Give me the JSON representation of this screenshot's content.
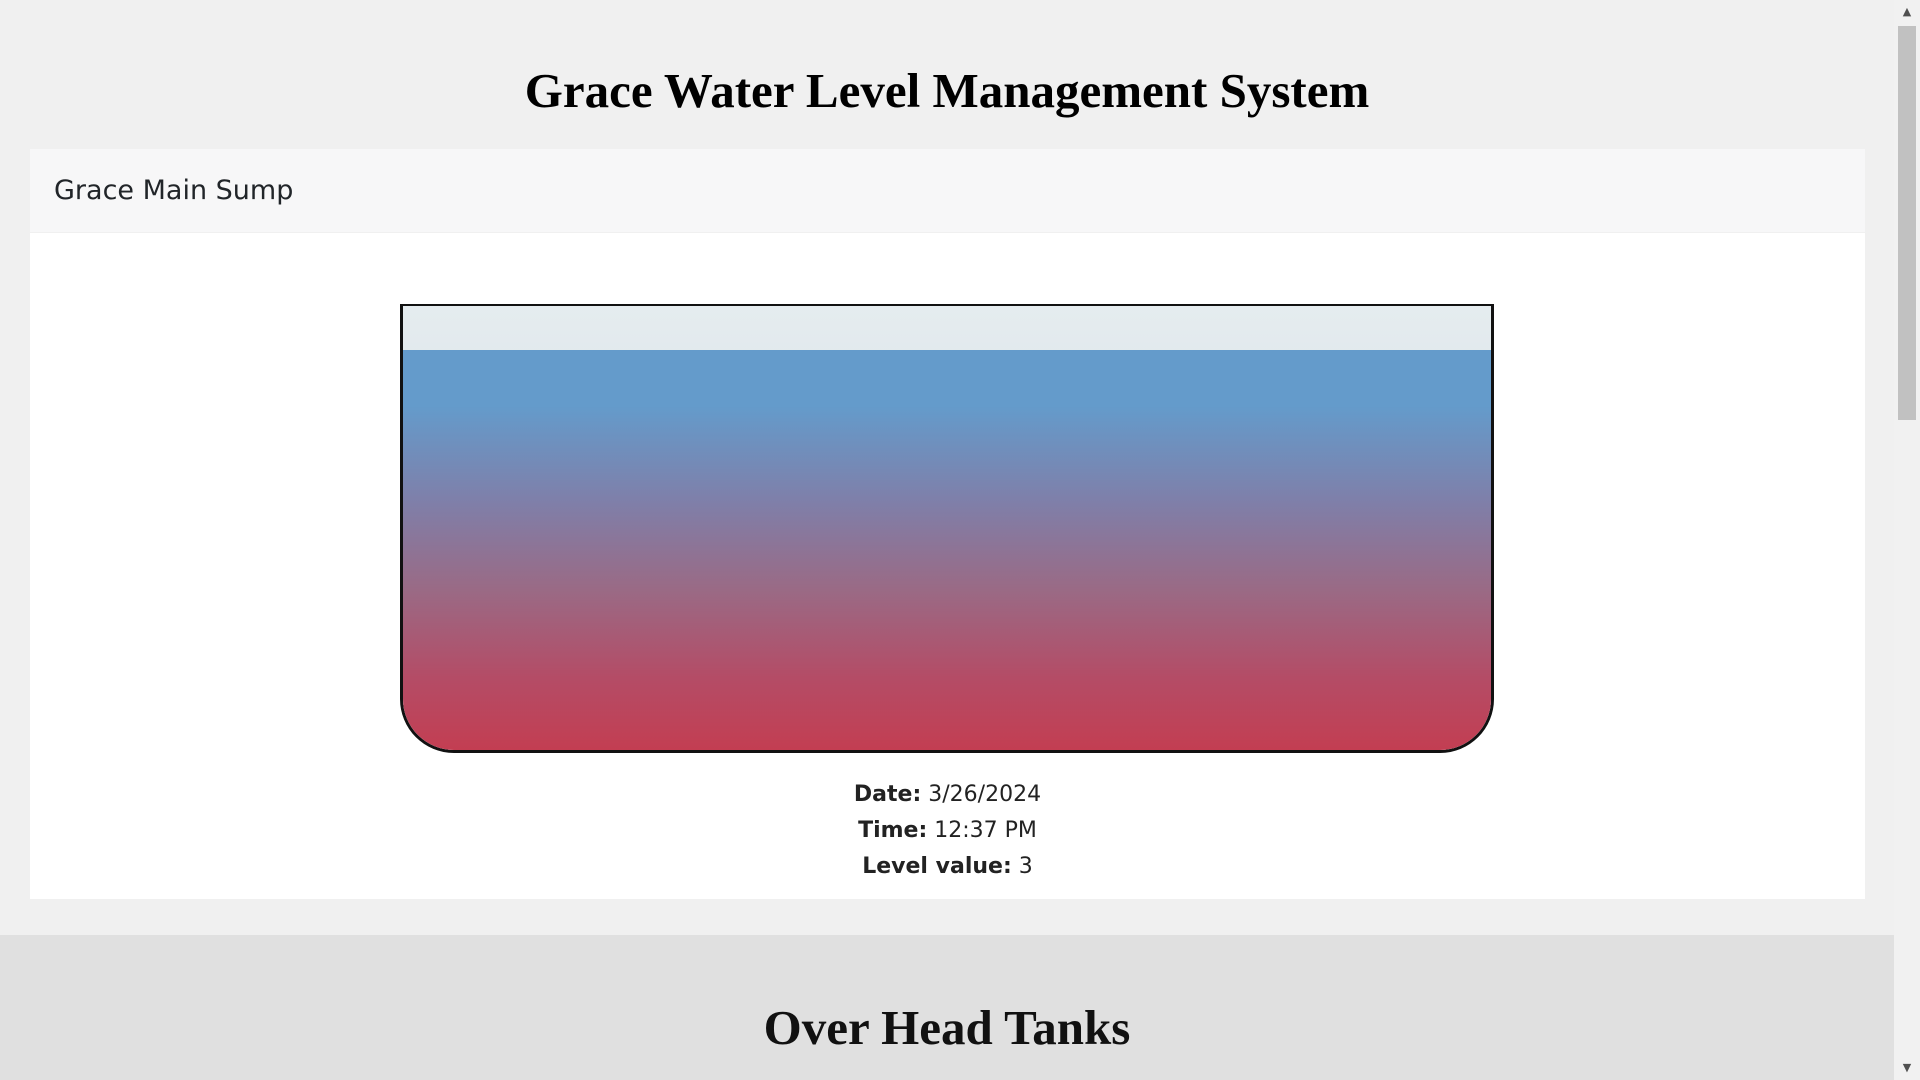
{
  "page": {
    "title": "Grace Water Level Management System"
  },
  "sump": {
    "name": "Grace Main Sump",
    "fill_fraction": 0.9,
    "colors": {
      "water_top": "#649bcb",
      "water_bottom": "#c33e52",
      "air": "#d7e3e8",
      "outline": "#111111"
    },
    "date_label": "Date:",
    "date_value": "3/26/2024",
    "time_label": "Time:",
    "time_value": "12:37 PM",
    "level_label": "Level value:",
    "level_value": "3"
  },
  "overhead": {
    "title": "Over Head Tanks"
  },
  "icons": {
    "scroll_up": "arrow-up-icon",
    "scroll_down": "arrow-down-icon"
  }
}
